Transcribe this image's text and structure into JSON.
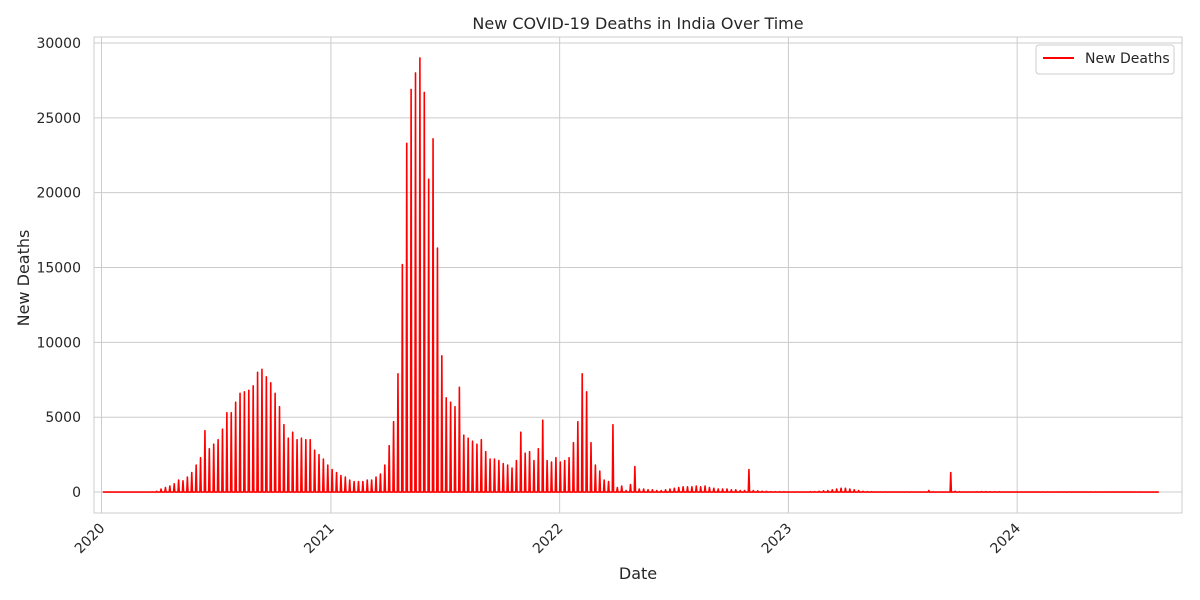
{
  "chart_data": {
    "type": "line",
    "title": "New COVID-19 Deaths in India Over Time",
    "xlabel": "Date",
    "ylabel": "New Deaths",
    "x_ticks": [
      "2020",
      "2021",
      "2022",
      "2023",
      "2024"
    ],
    "y_ticks": [
      "0",
      "5000",
      "10000",
      "15000",
      "20000",
      "25000",
      "30000"
    ],
    "ylim": [
      -1400,
      30400
    ],
    "xlim": [
      "2019-12-20",
      "2024-09-20"
    ],
    "grid": true,
    "legend_position": "top-right",
    "series_color": "#ff0000",
    "series": [
      {
        "name": "New Deaths",
        "weekly_x": [
          "2020-01-05",
          "2020-01-12",
          "2020-01-19",
          "2020-01-26",
          "2020-02-02",
          "2020-02-09",
          "2020-02-16",
          "2020-02-23",
          "2020-03-01",
          "2020-03-08",
          "2020-03-15",
          "2020-03-22",
          "2020-03-29",
          "2020-04-05",
          "2020-04-12",
          "2020-04-19",
          "2020-04-26",
          "2020-05-03",
          "2020-05-10",
          "2020-05-17",
          "2020-05-24",
          "2020-05-31",
          "2020-06-07",
          "2020-06-14",
          "2020-06-21",
          "2020-06-28",
          "2020-07-05",
          "2020-07-12",
          "2020-07-19",
          "2020-07-26",
          "2020-08-02",
          "2020-08-09",
          "2020-08-16",
          "2020-08-23",
          "2020-08-30",
          "2020-09-06",
          "2020-09-13",
          "2020-09-20",
          "2020-09-27",
          "2020-10-04",
          "2020-10-11",
          "2020-10-18",
          "2020-10-25",
          "2020-11-01",
          "2020-11-08",
          "2020-11-15",
          "2020-11-22",
          "2020-11-29",
          "2020-12-06",
          "2020-12-13",
          "2020-12-20",
          "2020-12-27",
          "2021-01-03",
          "2021-01-10",
          "2021-01-17",
          "2021-01-24",
          "2021-01-31",
          "2021-02-07",
          "2021-02-14",
          "2021-02-21",
          "2021-02-28",
          "2021-03-07",
          "2021-03-14",
          "2021-03-21",
          "2021-03-28",
          "2021-04-04",
          "2021-04-11",
          "2021-04-18",
          "2021-04-25",
          "2021-05-02",
          "2021-05-09",
          "2021-05-16",
          "2021-05-23",
          "2021-05-30",
          "2021-06-06",
          "2021-06-13",
          "2021-06-20",
          "2021-06-27",
          "2021-07-04",
          "2021-07-11",
          "2021-07-18",
          "2021-07-25",
          "2021-08-01",
          "2021-08-08",
          "2021-08-15",
          "2021-08-22",
          "2021-08-29",
          "2021-09-05",
          "2021-09-12",
          "2021-09-19",
          "2021-09-26",
          "2021-10-03",
          "2021-10-10",
          "2021-10-17",
          "2021-10-24",
          "2021-10-31",
          "2021-11-07",
          "2021-11-14",
          "2021-11-21",
          "2021-11-28",
          "2021-12-05",
          "2021-12-12",
          "2021-12-19",
          "2021-12-26",
          "2022-01-02",
          "2022-01-09",
          "2022-01-16",
          "2022-01-23",
          "2022-01-30",
          "2022-02-06",
          "2022-02-13",
          "2022-02-20",
          "2022-02-27",
          "2022-03-06",
          "2022-03-13",
          "2022-03-20",
          "2022-03-27",
          "2022-04-03",
          "2022-04-10",
          "2022-04-17",
          "2022-04-24",
          "2022-05-01",
          "2022-05-08",
          "2022-05-15",
          "2022-05-22",
          "2022-05-29",
          "2022-06-05",
          "2022-06-12",
          "2022-06-19",
          "2022-06-26",
          "2022-07-03",
          "2022-07-10",
          "2022-07-17",
          "2022-07-24",
          "2022-07-31",
          "2022-08-07",
          "2022-08-14",
          "2022-08-21",
          "2022-08-28",
          "2022-09-04",
          "2022-09-11",
          "2022-09-18",
          "2022-09-25",
          "2022-10-02",
          "2022-10-09",
          "2022-10-16",
          "2022-10-23",
          "2022-10-30",
          "2022-11-06",
          "2022-11-13",
          "2022-11-20",
          "2022-11-27",
          "2022-12-04",
          "2022-12-11",
          "2022-12-18",
          "2022-12-25",
          "2023-01-01",
          "2023-01-08",
          "2023-01-15",
          "2023-01-22",
          "2023-01-29",
          "2023-02-05",
          "2023-02-12",
          "2023-02-19",
          "2023-02-26",
          "2023-03-05",
          "2023-03-12",
          "2023-03-19",
          "2023-03-26",
          "2023-04-02",
          "2023-04-09",
          "2023-04-16",
          "2023-04-23",
          "2023-04-30",
          "2023-05-07",
          "2023-05-14",
          "2023-05-21",
          "2023-05-28",
          "2023-06-04",
          "2023-06-11",
          "2023-06-18",
          "2023-06-25",
          "2023-07-02",
          "2023-07-09",
          "2023-07-16",
          "2023-07-23",
          "2023-07-30",
          "2023-08-06",
          "2023-08-13",
          "2023-08-20",
          "2023-08-27",
          "2023-09-03",
          "2023-09-10",
          "2023-09-17",
          "2023-09-24",
          "2023-10-01",
          "2023-10-08",
          "2023-10-15",
          "2023-10-22",
          "2023-10-29",
          "2023-11-05",
          "2023-11-12",
          "2023-11-19",
          "2023-11-26",
          "2023-12-03",
          "2023-12-10",
          "2023-12-17",
          "2023-12-24",
          "2023-12-31",
          "2024-01-07",
          "2024-01-14",
          "2024-01-21",
          "2024-01-28",
          "2024-02-04",
          "2024-02-11",
          "2024-02-18",
          "2024-02-25",
          "2024-03-03",
          "2024-03-10",
          "2024-03-17",
          "2024-03-24",
          "2024-03-31",
          "2024-04-07",
          "2024-04-14",
          "2024-04-21",
          "2024-04-28",
          "2024-05-05",
          "2024-05-12",
          "2024-05-19",
          "2024-05-26",
          "2024-06-02",
          "2024-06-09",
          "2024-06-16",
          "2024-06-23",
          "2024-06-30",
          "2024-07-07",
          "2024-07-14",
          "2024-07-21",
          "2024-07-28",
          "2024-08-04",
          "2024-08-11"
        ],
        "weekly_values": [
          0,
          0,
          0,
          0,
          0,
          0,
          0,
          0,
          0,
          0,
          0,
          10,
          50,
          200,
          300,
          400,
          550,
          800,
          750,
          1000,
          1300,
          1800,
          2300,
          4100,
          2900,
          3200,
          3500,
          4200,
          5300,
          5300,
          6000,
          6600,
          6700,
          6800,
          7100,
          8000,
          8200,
          7700,
          7300,
          6600,
          5700,
          4500,
          3600,
          4000,
          3500,
          3600,
          3500,
          3500,
          2800,
          2500,
          2200,
          1800,
          1500,
          1300,
          1100,
          1000,
          800,
          700,
          700,
          700,
          800,
          800,
          1000,
          1200,
          1800,
          3100,
          4700,
          7900,
          15200,
          23300,
          26900,
          28000,
          29000,
          26700,
          20900,
          23600,
          16300,
          9100,
          6300,
          6000,
          5700,
          7000,
          3800,
          3600,
          3400,
          3200,
          3500,
          2700,
          2200,
          2200,
          2100,
          1900,
          1800,
          1600,
          2100,
          4000,
          2600,
          2700,
          2100,
          2900,
          4800,
          2100,
          2000,
          2300,
          2000,
          2100,
          2300,
          3300,
          4700,
          7900,
          6700,
          3300,
          1800,
          1400,
          800,
          700,
          4500,
          300,
          400,
          100,
          500,
          1700,
          200,
          200,
          150,
          150,
          100,
          100,
          150,
          200,
          250,
          300,
          350,
          350,
          350,
          400,
          350,
          400,
          300,
          250,
          200,
          200,
          200,
          150,
          150,
          100,
          100,
          1500,
          100,
          80,
          50,
          50,
          30,
          20,
          20,
          20,
          10,
          10,
          10,
          10,
          10,
          20,
          30,
          50,
          80,
          100,
          150,
          200,
          250,
          250,
          200,
          150,
          100,
          50,
          30,
          20,
          10,
          10,
          10,
          10,
          10,
          10,
          10,
          10,
          10,
          10,
          10,
          10,
          100,
          20,
          10,
          10,
          10,
          1300,
          50,
          20,
          10,
          10,
          10,
          20,
          30,
          30,
          20,
          20,
          20,
          10,
          10,
          10,
          10,
          10,
          10,
          10,
          10,
          10,
          10,
          10,
          10,
          10,
          10,
          10,
          10,
          10,
          10,
          10,
          10,
          10,
          10,
          10,
          10,
          10,
          10,
          10,
          10,
          10,
          10,
          10,
          10
        ]
      }
    ]
  }
}
